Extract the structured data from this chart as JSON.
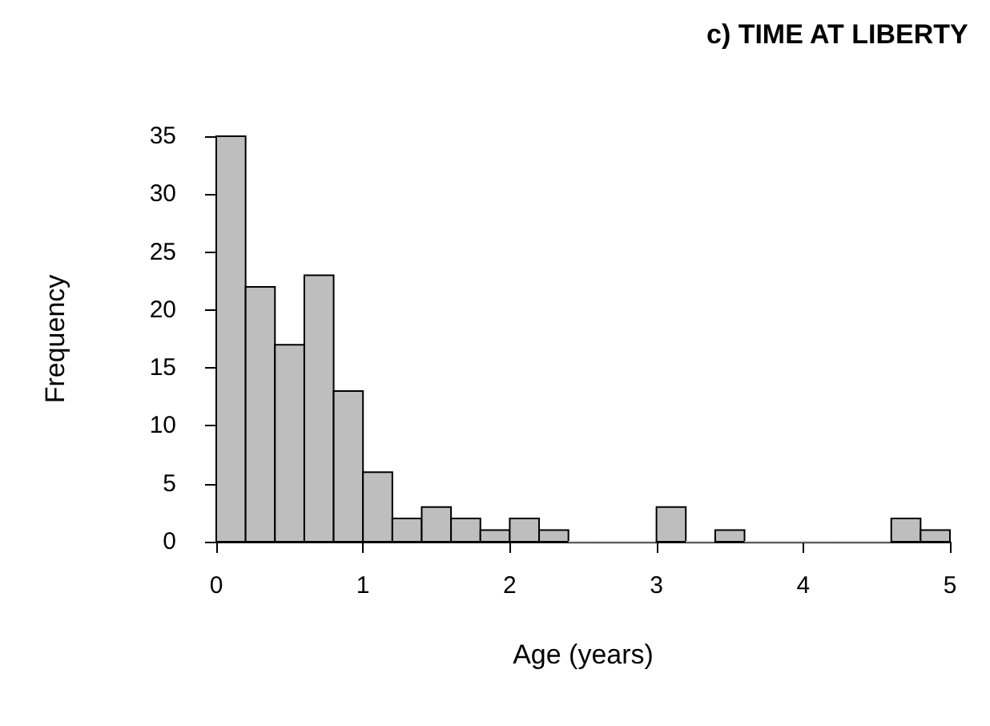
{
  "chart_data": {
    "type": "histogram",
    "title": "c) TIME AT LIBERTY",
    "xlabel": "Age (years)",
    "ylabel": "Frequency",
    "bins": [
      0,
      0.2,
      0.4,
      0.6,
      0.8,
      1,
      1.2,
      1.4,
      1.6,
      1.8,
      2,
      2.2,
      2.4,
      2.6,
      2.8,
      3,
      3.2,
      3.4,
      3.6,
      3.8,
      4,
      4.2,
      4.4,
      4.6,
      4.8,
      5
    ],
    "values": [
      35,
      22,
      17,
      23,
      13,
      6,
      2,
      3,
      2,
      1,
      2,
      1,
      0,
      0,
      0,
      3,
      0,
      1,
      0,
      0,
      0,
      0,
      0,
      2,
      1
    ],
    "color": "#bebebe",
    "xlim": [
      0,
      5
    ],
    "xticks": [
      0,
      1,
      2,
      3,
      4,
      5
    ],
    "ylim": [
      0,
      35
    ],
    "yticks": [
      0,
      5,
      10,
      15,
      20,
      25,
      30,
      35
    ],
    "grid": false
  }
}
